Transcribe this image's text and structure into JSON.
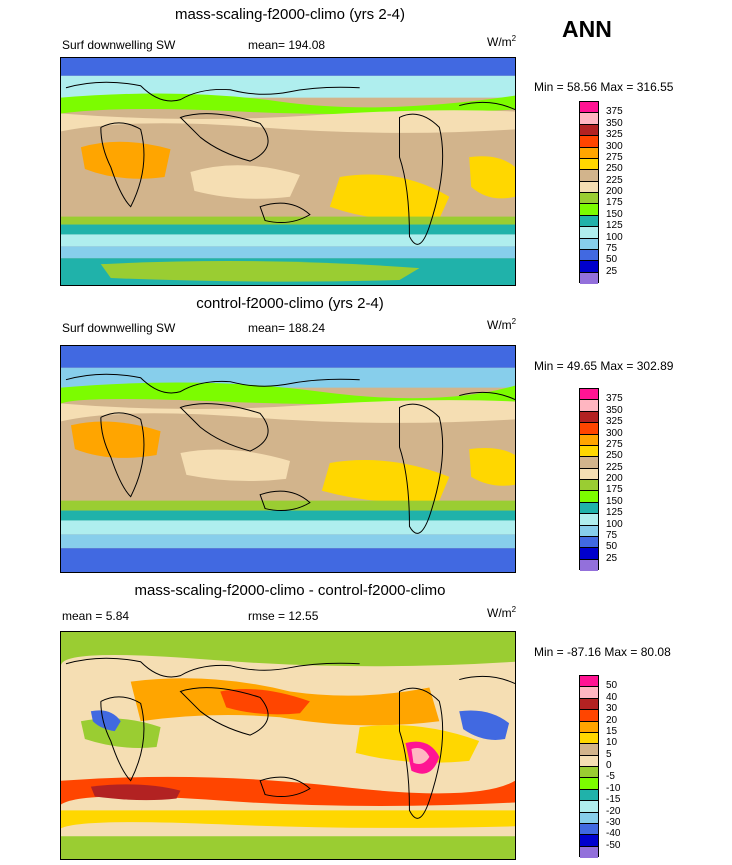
{
  "season": "ANN",
  "panels": [
    {
      "title": "mass-scaling-f2000-climo (yrs 2-4)",
      "left_label": "Surf downwelling SW",
      "center_label": "mean= 194.08",
      "units": "W/m",
      "units_sup": "2",
      "minmax": "Min =  58.56 Max = 316.55",
      "colorbar": {
        "labels": [
          "375",
          "350",
          "325",
          "300",
          "275",
          "250",
          "225",
          "200",
          "175",
          "150",
          "125",
          "100",
          "75",
          "50",
          "25"
        ],
        "colors": [
          "#ff1493",
          "#ffb6c1",
          "#b22222",
          "#ff4500",
          "#ffa500",
          "#ffd700",
          "#d2b48c",
          "#f5deb3",
          "#9acd32",
          "#7cfc00",
          "#20b2aa",
          "#afeeee",
          "#87ceeb",
          "#4169e1",
          "#0000cd",
          "#9370db"
        ]
      }
    },
    {
      "title": "control-f2000-climo (yrs 2-4)",
      "left_label": "Surf downwelling SW",
      "center_label": "mean= 188.24",
      "units": "W/m",
      "units_sup": "2",
      "minmax": "Min =  49.65 Max = 302.89",
      "colorbar": {
        "labels": [
          "375",
          "350",
          "325",
          "300",
          "275",
          "250",
          "225",
          "200",
          "175",
          "150",
          "125",
          "100",
          "75",
          "50",
          "25"
        ],
        "colors": [
          "#ff1493",
          "#ffb6c1",
          "#b22222",
          "#ff4500",
          "#ffa500",
          "#ffd700",
          "#d2b48c",
          "#f5deb3",
          "#9acd32",
          "#7cfc00",
          "#20b2aa",
          "#afeeee",
          "#87ceeb",
          "#4169e1",
          "#0000cd",
          "#9370db"
        ]
      }
    },
    {
      "title": "mass-scaling-f2000-climo - control-f2000-climo",
      "left_label": "mean =   5.84",
      "center_label": "rmse =  12.55",
      "units": "W/m",
      "units_sup": "2",
      "minmax": "Min = -87.16 Max =  80.08",
      "colorbar": {
        "labels": [
          "50",
          "40",
          "30",
          "20",
          "15",
          "10",
          "5",
          "0",
          "-5",
          "-10",
          "-15",
          "-20",
          "-30",
          "-40",
          "-50"
        ],
        "colors": [
          "#ff1493",
          "#ffb6c1",
          "#b22222",
          "#ff4500",
          "#ffa500",
          "#ffd700",
          "#d2b48c",
          "#f5deb3",
          "#9acd32",
          "#7cfc00",
          "#20b2aa",
          "#afeeee",
          "#87ceeb",
          "#4169e1",
          "#0000cd",
          "#9370db"
        ]
      }
    }
  ]
}
